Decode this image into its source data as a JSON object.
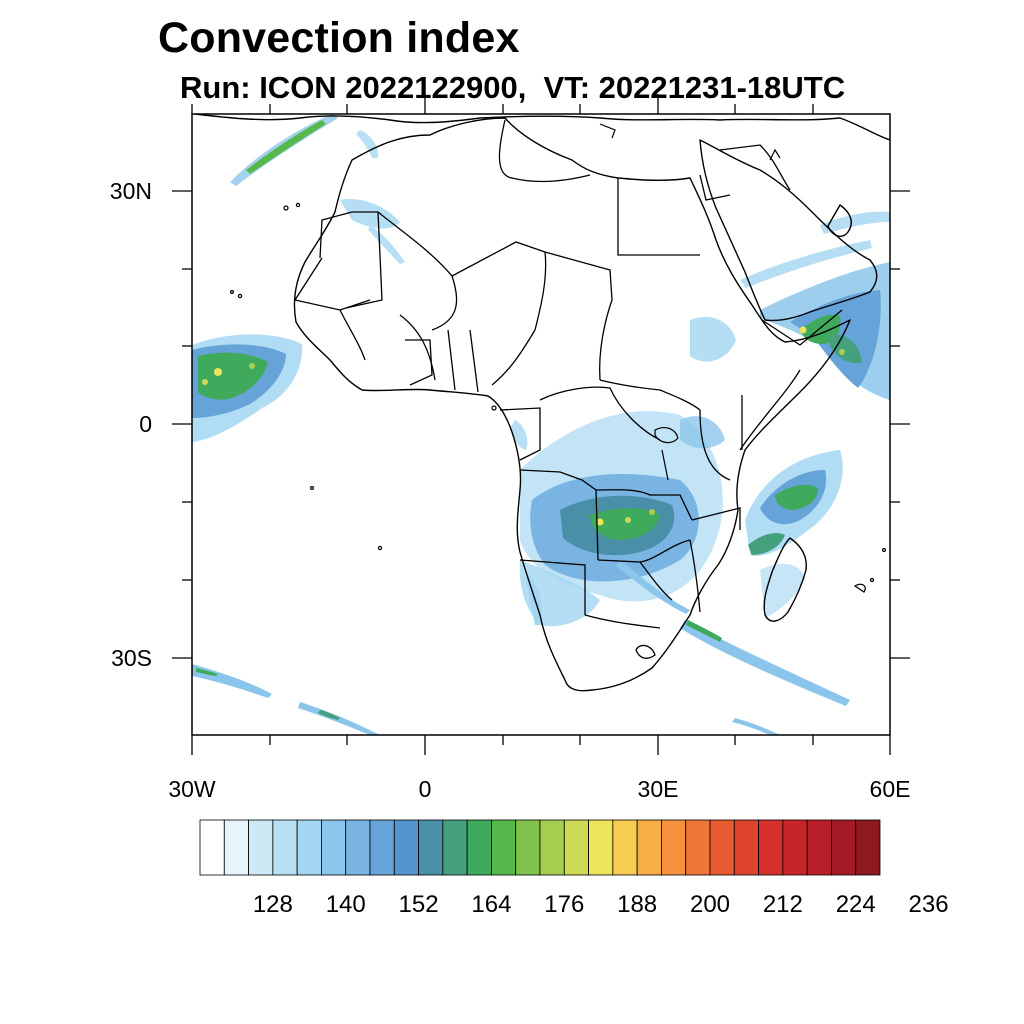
{
  "title": "Convection index",
  "subtitle": "Run: ICON 2022122900,  VT: 20221231-18UTC",
  "map": {
    "region": "Africa",
    "lon_range": [
      -30,
      60
    ],
    "lat_range": [
      -40,
      40
    ],
    "lon_ticks": [
      "30W",
      "0",
      "30E",
      "60E"
    ],
    "lat_ticks": [
      "30N",
      "0",
      "30S"
    ]
  },
  "colorbar": {
    "labels": [
      "128",
      "140",
      "152",
      "164",
      "176",
      "188",
      "200",
      "212",
      "224",
      "236"
    ],
    "colors": [
      "#ffffff",
      "#e8f4fb",
      "#cfe8f6",
      "#b8dff4",
      "#a2d6f2",
      "#8cc5eb",
      "#79b4e2",
      "#66a3d9",
      "#5595cf",
      "#4a8fa8",
      "#45a07e",
      "#3faa5c",
      "#56b84a",
      "#80c24c",
      "#a7cf4f",
      "#cbda52",
      "#eee55a",
      "#f6cc52",
      "#f7ae47",
      "#f4923e",
      "#ef7636",
      "#e85b31",
      "#df442e",
      "#d6302c",
      "#c8252b",
      "#b81f29",
      "#a51b25",
      "#8e1a1f"
    ]
  },
  "convection_areas": [
    {
      "name": "west-africa-atlantic",
      "intensity": "high"
    },
    {
      "name": "central-southern-africa",
      "intensity": "high"
    },
    {
      "name": "horn-of-africa-arabian-sea",
      "intensity": "high"
    },
    {
      "name": "madagascar-mozambique-channel",
      "intensity": "medium"
    },
    {
      "name": "north-atlantic-band",
      "intensity": "medium"
    },
    {
      "name": "south-atlantic-band",
      "intensity": "low"
    },
    {
      "name": "southwest-indian-ocean-band",
      "intensity": "low"
    }
  ]
}
